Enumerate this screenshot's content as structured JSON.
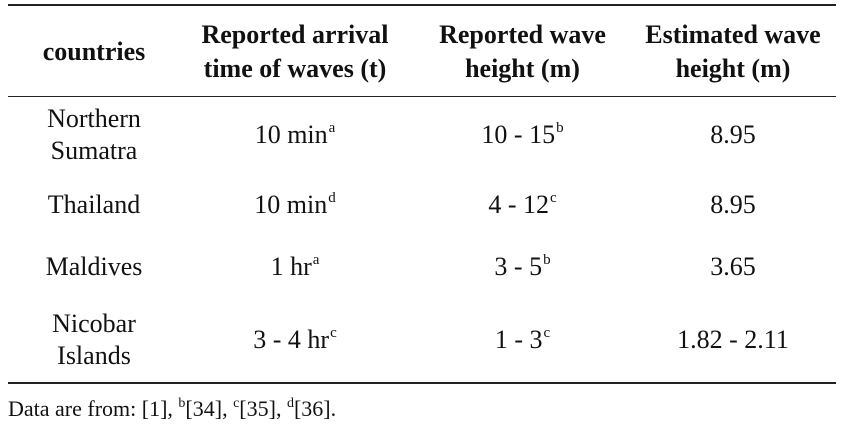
{
  "table": {
    "headers": [
      [
        "countries"
      ],
      [
        "Reported arrival",
        "time of waves (t)"
      ],
      [
        "Reported wave",
        "height (m)"
      ],
      [
        "Estimated wave",
        "height (m)"
      ]
    ],
    "rows": [
      {
        "country": [
          "Northern",
          "Sumatra"
        ],
        "arrival": {
          "value": "10 min",
          "sup": "a"
        },
        "reported": {
          "value": "10 - 15",
          "sup": "b"
        },
        "estimated": "8.95"
      },
      {
        "country": [
          "Thailand"
        ],
        "arrival": {
          "value": "10 min",
          "sup": "d"
        },
        "reported": {
          "value": "4 - 12",
          "sup": "c"
        },
        "estimated": "8.95"
      },
      {
        "country": [
          "Maldives"
        ],
        "arrival": {
          "value": "1 hr",
          "sup": "a"
        },
        "reported": {
          "value": "3 - 5",
          "sup": "b"
        },
        "estimated": "3.65"
      },
      {
        "country": [
          "Nicobar",
          "Islands"
        ],
        "arrival": {
          "value": "3 - 4 hr",
          "sup": "c"
        },
        "reported": {
          "value": "1 - 3",
          "sup": "c"
        },
        "estimated": "1.82 - 2.11"
      }
    ]
  },
  "footnote": {
    "prefix": "Data are from: ",
    "refs": [
      {
        "sup": "",
        "ref": "[1]"
      },
      {
        "sup": "b",
        "ref": "[34]"
      },
      {
        "sup": "c",
        "ref": "[35]"
      },
      {
        "sup": "d",
        "ref": "[36]"
      }
    ],
    "separator": ", ",
    "end": "."
  }
}
